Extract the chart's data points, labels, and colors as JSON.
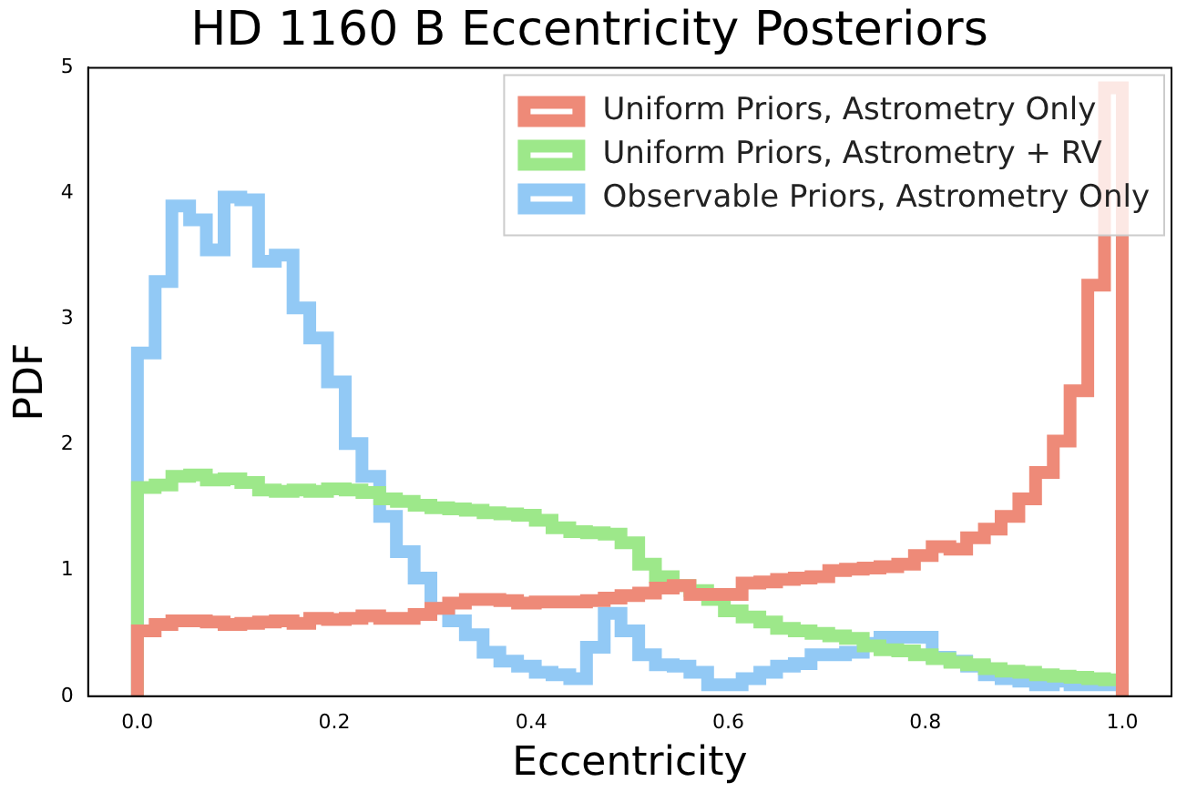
{
  "chart_data": {
    "type": "histogram",
    "title": "HD 1160 B Eccentricity Posteriors",
    "xlabel": "Eccentricity",
    "ylabel": "PDF",
    "bins": [
      0,
      0.018,
      0.035,
      0.053,
      0.07,
      0.088,
      0.105,
      0.123,
      0.14,
      0.158,
      0.175,
      0.193,
      0.211,
      0.228,
      0.246,
      0.263,
      0.281,
      0.298,
      0.316,
      0.333,
      0.351,
      0.368,
      0.386,
      0.404,
      0.421,
      0.439,
      0.456,
      0.474,
      0.491,
      0.509,
      0.526,
      0.544,
      0.561,
      0.579,
      0.596,
      0.614,
      0.632,
      0.649,
      0.667,
      0.684,
      0.702,
      0.719,
      0.737,
      0.754,
      0.772,
      0.789,
      0.807,
      0.825,
      0.842,
      0.86,
      0.877,
      0.895,
      0.912,
      0.93,
      0.947,
      0.965,
      0.982,
      1
    ],
    "series": [
      {
        "name": "Uniform Priors, Astrometry Only",
        "color": "#ee8a78",
        "values": [
          0.52,
          0.57,
          0.6,
          0.6,
          0.59,
          0.57,
          0.58,
          0.59,
          0.6,
          0.58,
          0.62,
          0.61,
          0.62,
          0.64,
          0.62,
          0.62,
          0.65,
          0.7,
          0.74,
          0.77,
          0.77,
          0.76,
          0.74,
          0.75,
          0.75,
          0.75,
          0.76,
          0.78,
          0.8,
          0.82,
          0.86,
          0.88,
          0.81,
          0.81,
          0.81,
          0.9,
          0.91,
          0.93,
          0.94,
          0.95,
          1.0,
          1.01,
          1.02,
          1.03,
          1.05,
          1.12,
          1.19,
          1.17,
          1.26,
          1.33,
          1.43,
          1.57,
          1.78,
          2.03,
          2.43,
          3.27,
          4.84
        ]
      },
      {
        "name": "Uniform Priors, Astrometry + RV",
        "color": "#9de88a",
        "values": [
          1.66,
          1.68,
          1.75,
          1.76,
          1.72,
          1.73,
          1.7,
          1.64,
          1.63,
          1.64,
          1.63,
          1.65,
          1.64,
          1.62,
          1.57,
          1.55,
          1.52,
          1.5,
          1.49,
          1.48,
          1.46,
          1.45,
          1.44,
          1.4,
          1.34,
          1.31,
          1.3,
          1.29,
          1.22,
          1.05,
          0.95,
          0.88,
          0.84,
          0.77,
          0.68,
          0.63,
          0.59,
          0.54,
          0.52,
          0.5,
          0.48,
          0.46,
          0.4,
          0.37,
          0.36,
          0.33,
          0.3,
          0.27,
          0.25,
          0.22,
          0.2,
          0.19,
          0.17,
          0.16,
          0.15,
          0.14,
          0.13
        ]
      },
      {
        "name": "Observable Priors, Astrometry Only",
        "color": "#92c9f5",
        "values": [
          2.73,
          3.3,
          3.9,
          3.79,
          3.55,
          3.97,
          3.95,
          3.46,
          3.51,
          3.09,
          2.85,
          2.5,
          2.01,
          1.75,
          1.43,
          1.15,
          0.94,
          0.7,
          0.6,
          0.49,
          0.35,
          0.28,
          0.24,
          0.19,
          0.17,
          0.14,
          0.39,
          0.66,
          0.52,
          0.33,
          0.25,
          0.24,
          0.19,
          0.09,
          0.09,
          0.14,
          0.19,
          0.24,
          0.26,
          0.33,
          0.33,
          0.35,
          0.42,
          0.47,
          0.47,
          0.47,
          0.31,
          0.28,
          0.24,
          0.17,
          0.14,
          0.12,
          0.09,
          0.12,
          0.09,
          0.09,
          0.09
        ]
      }
    ],
    "xlim": [
      -0.05,
      1.05
    ],
    "xticks": [
      {
        "value": 0,
        "label": "0.0"
      },
      {
        "value": 0.2,
        "label": "0.2"
      },
      {
        "value": 0.4,
        "label": "0.4"
      },
      {
        "value": 0.6,
        "label": "0.6"
      },
      {
        "value": 0.8,
        "label": "0.8"
      },
      {
        "value": 1,
        "label": "1.0"
      }
    ],
    "ylim": [
      0,
      5
    ],
    "yticks": [
      0,
      1,
      2,
      3,
      4,
      5
    ],
    "grid": false,
    "legend": "top right"
  }
}
